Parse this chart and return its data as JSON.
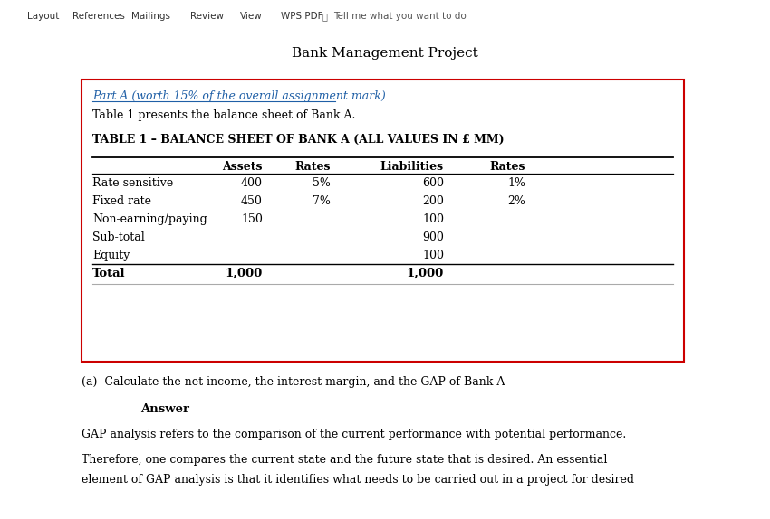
{
  "title": "Bank Management Project",
  "part_a_text": "Part A (worth 15% of the overall assignment mark)",
  "intro_text": "Table 1 presents the balance sheet of Bank A.",
  "table_title": "TABLE 1 – BALANCE SHEET OF BANK A (ALL VALUES IN £ MM)",
  "col_headers": [
    "Assets",
    "Rates",
    "Liabilities",
    "Rates"
  ],
  "rows": [
    [
      "Rate sensitive",
      "400",
      "5%",
      "600",
      "1%"
    ],
    [
      "Fixed rate",
      "450",
      "7%",
      "200",
      "2%"
    ],
    [
      "Non-earning/paying",
      "150",
      "",
      "100",
      ""
    ],
    [
      "Sub-total",
      "",
      "",
      "900",
      ""
    ],
    [
      "Equity",
      "",
      "",
      "100",
      ""
    ]
  ],
  "total_row": [
    "Total",
    "1,000",
    "",
    "1,000",
    ""
  ],
  "question_text": "(a)  Calculate the net income, the interest margin, and the GAP of Bank A",
  "answer_label": "Answer",
  "body_text1": "GAP analysis refers to the comparison of the current performance with potential performance.",
  "body_text2": "Therefore, one compares the current state and the future state that is desired. An essential",
  "body_text3": "element of GAP analysis is that it identifies what needs to be carried out in a project for desired",
  "bg_color": "#ffffff",
  "box_border_color": "#cc0000",
  "part_a_color": "#1f5fa6",
  "text_color": "#000000",
  "menu_items": [
    "Layout",
    "References",
    "Mailings",
    "Review",
    "View",
    "WPS PDF"
  ],
  "menu_tell": "Tell me what you want to do"
}
